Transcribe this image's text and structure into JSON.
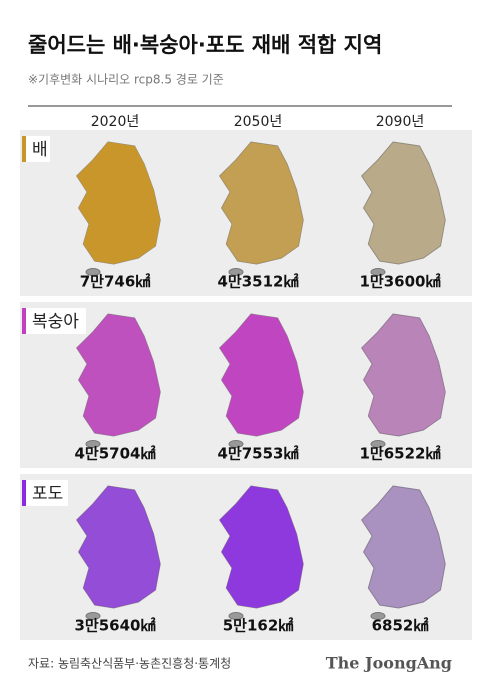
{
  "header": {
    "title": "줄어드는 배·복숭아·포도 재배 적합 지역",
    "subtitle": "※기후변화 시나리오 rcp8.5 경로 기준"
  },
  "years": [
    "2020년",
    "2050년",
    "2090년"
  ],
  "rows": [
    {
      "label": "배",
      "areas": [
        "7만746㎢",
        "4만3512㎢",
        "1만3600㎢"
      ]
    },
    {
      "label": "복숭아",
      "areas": [
        "4만5704㎢",
        "4만7553㎢",
        "1만6522㎢"
      ]
    },
    {
      "label": "포도",
      "areas": [
        "3만5640㎢",
        "5만162㎢",
        "6852㎢"
      ]
    }
  ],
  "footer": {
    "source": "자료: 농림축산식품부·농촌진흥청·통계청",
    "logo": "The JoongAng"
  }
}
